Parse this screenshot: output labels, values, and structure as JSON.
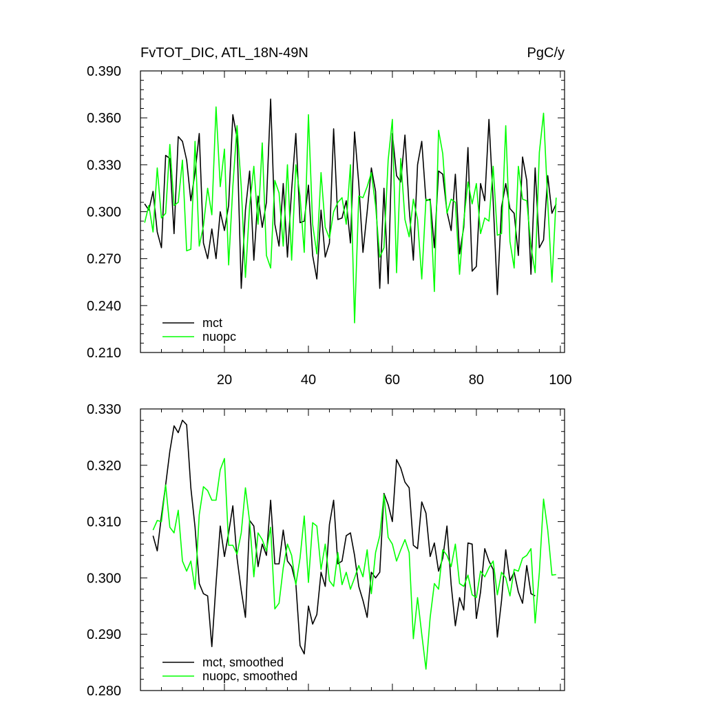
{
  "chart_data": [
    {
      "type": "line",
      "title": "FvTOT_DIC, ATL_18N-49N",
      "units": "PgC/y",
      "xlim": [
        0,
        101
      ],
      "ylim": [
        0.21,
        0.39
      ],
      "xticks": [
        20,
        40,
        60,
        80,
        100
      ],
      "xtick_labels": [
        "20",
        "40",
        "60",
        "80",
        "100"
      ],
      "yticks": [
        0.21,
        0.24,
        0.27,
        0.3,
        0.33,
        0.36,
        0.39
      ],
      "ytick_labels": [
        "0.210",
        "0.240",
        "0.270",
        "0.300",
        "0.330",
        "0.360",
        "0.390"
      ],
      "legend_position": "bottom-left",
      "grid": false,
      "x_start": 1,
      "series": [
        {
          "name": "mct",
          "color": "#000000",
          "values": [
            0.305,
            0.301,
            0.313,
            0.287,
            0.277,
            0.336,
            0.334,
            0.286,
            0.348,
            0.345,
            0.333,
            0.307,
            0.325,
            0.35,
            0.28,
            0.27,
            0.289,
            0.27,
            0.3,
            0.288,
            0.304,
            0.362,
            0.347,
            0.251,
            0.301,
            0.326,
            0.269,
            0.31,
            0.29,
            0.306,
            0.372,
            0.292,
            0.278,
            0.318,
            0.271,
            0.314,
            0.35,
            0.293,
            0.294,
            0.317,
            0.272,
            0.257,
            0.301,
            0.271,
            0.28,
            0.353,
            0.295,
            0.296,
            0.307,
            0.28,
            0.351,
            0.318,
            0.274,
            0.3,
            0.328,
            0.313,
            0.251,
            0.315,
            0.254,
            0.35,
            0.323,
            0.319,
            0.349,
            0.302,
            0.269,
            0.33,
            0.345,
            0.307,
            0.308,
            0.277,
            0.326,
            0.324,
            0.3,
            0.288,
            0.324,
            0.273,
            0.29,
            0.341,
            0.262,
            0.265,
            0.318,
            0.307,
            0.359,
            0.307,
            0.247,
            0.303,
            0.318,
            0.302,
            0.299,
            0.272,
            0.335,
            0.32,
            0.26,
            0.328,
            0.277,
            0.282,
            0.323,
            0.299,
            0.305
          ]
        },
        {
          "name": "nuopc",
          "color": "#00ff00",
          "values": [
            0.293,
            0.304,
            0.287,
            0.328,
            0.296,
            0.299,
            0.343,
            0.304,
            0.306,
            0.333,
            0.275,
            0.276,
            0.345,
            0.278,
            0.291,
            0.315,
            0.298,
            0.367,
            0.316,
            0.34,
            0.266,
            0.316,
            0.355,
            0.316,
            0.258,
            0.304,
            0.329,
            0.292,
            0.344,
            0.272,
            0.264,
            0.32,
            0.312,
            0.278,
            0.33,
            0.269,
            0.33,
            0.31,
            0.274,
            0.362,
            0.292,
            0.273,
            0.325,
            0.29,
            0.283,
            0.3,
            0.306,
            0.309,
            0.292,
            0.33,
            0.229,
            0.31,
            0.309,
            0.316,
            0.325,
            0.304,
            0.271,
            0.277,
            0.333,
            0.359,
            0.261,
            0.334,
            0.295,
            0.284,
            0.308,
            0.295,
            0.257,
            0.308,
            0.307,
            0.249,
            0.352,
            0.337,
            0.299,
            0.308,
            0.306,
            0.26,
            0.294,
            0.319,
            0.305,
            0.318,
            0.286,
            0.296,
            0.294,
            0.329,
            0.285,
            0.286,
            0.355,
            0.281,
            0.264,
            0.329,
            0.308,
            0.307,
            0.278,
            0.261,
            0.338,
            0.363,
            0.306,
            0.255,
            0.309
          ]
        }
      ]
    },
    {
      "type": "line",
      "title": "",
      "xlim": [
        0,
        101
      ],
      "ylim": [
        0.28,
        0.33
      ],
      "xticks": [
        20,
        40,
        60,
        80,
        100
      ],
      "xtick_labels": [],
      "yticks": [
        0.28,
        0.29,
        0.3,
        0.31,
        0.32,
        0.33
      ],
      "ytick_labels": [
        "0.280",
        "0.290",
        "0.300",
        "0.310",
        "0.320",
        "0.330"
      ],
      "legend_position": "bottom-left",
      "grid": false,
      "x_start": 3,
      "series": [
        {
          "name": "mct, smoothed",
          "color": "#000000",
          "values": [
            0.3075,
            0.3048,
            0.311,
            0.3165,
            0.3225,
            0.327,
            0.3258,
            0.328,
            0.3272,
            0.316,
            0.309,
            0.299,
            0.2972,
            0.2968,
            0.2878,
            0.299,
            0.3092,
            0.3038,
            0.308,
            0.3128,
            0.3035,
            0.2978,
            0.293,
            0.3102,
            0.3092,
            0.302,
            0.306,
            0.304,
            0.3138,
            0.3025,
            0.3025,
            0.3085,
            0.303,
            0.302,
            0.299,
            0.288,
            0.2865,
            0.295,
            0.2918,
            0.2935,
            0.301,
            0.2985,
            0.3095,
            0.3138,
            0.3025,
            0.303,
            0.3075,
            0.308,
            0.304,
            0.2985,
            0.296,
            0.293,
            0.301,
            0.3,
            0.301,
            0.315,
            0.313,
            0.31,
            0.321,
            0.3195,
            0.317,
            0.316,
            0.3058,
            0.3052,
            0.3135,
            0.3115,
            0.3038,
            0.3062,
            0.3012,
            0.3035,
            0.3092,
            0.2988,
            0.2915,
            0.2965,
            0.2943,
            0.3062,
            0.306,
            0.2928,
            0.2975,
            0.3052,
            0.303,
            0.3015,
            0.2895,
            0.296,
            0.305,
            0.2995,
            0.301,
            0.2975,
            0.2955,
            0.3022,
            0.2972,
            0.2968
          ]
        },
        {
          "name": "nuopc, smoothed",
          "color": "#00ff00",
          "values": [
            0.3085,
            0.3102,
            0.31,
            0.3165,
            0.309,
            0.308,
            0.312,
            0.303,
            0.3012,
            0.303,
            0.298,
            0.3112,
            0.3162,
            0.3155,
            0.3138,
            0.3138,
            0.3192,
            0.3212,
            0.3058,
            0.3058,
            0.3042,
            0.308,
            0.316,
            0.31,
            0.3002,
            0.308,
            0.3068,
            0.3048,
            0.309,
            0.2945,
            0.2955,
            0.3018,
            0.306,
            0.304,
            0.2988,
            0.3035,
            0.311,
            0.2992,
            0.3098,
            0.3092,
            0.3015,
            0.306,
            0.2995,
            0.2985,
            0.3045,
            0.2988,
            0.301,
            0.298,
            0.3,
            0.3022,
            0.3002,
            0.305,
            0.2972,
            0.3045,
            0.3075,
            0.3148,
            0.3072,
            0.306,
            0.303,
            0.305,
            0.3068,
            0.3045,
            0.2892,
            0.2965,
            0.29,
            0.2838,
            0.293,
            0.299,
            0.298,
            0.305,
            0.304,
            0.302,
            0.306,
            0.299,
            0.2985,
            0.3005,
            0.297,
            0.2965,
            0.3012,
            0.3002,
            0.3018,
            0.303,
            0.297,
            0.301,
            0.3,
            0.2968,
            0.3015,
            0.3012,
            0.3035,
            0.304,
            0.3052,
            0.292,
            0.301,
            0.314,
            0.3085,
            0.3005,
            0.3006
          ]
        }
      ]
    }
  ]
}
